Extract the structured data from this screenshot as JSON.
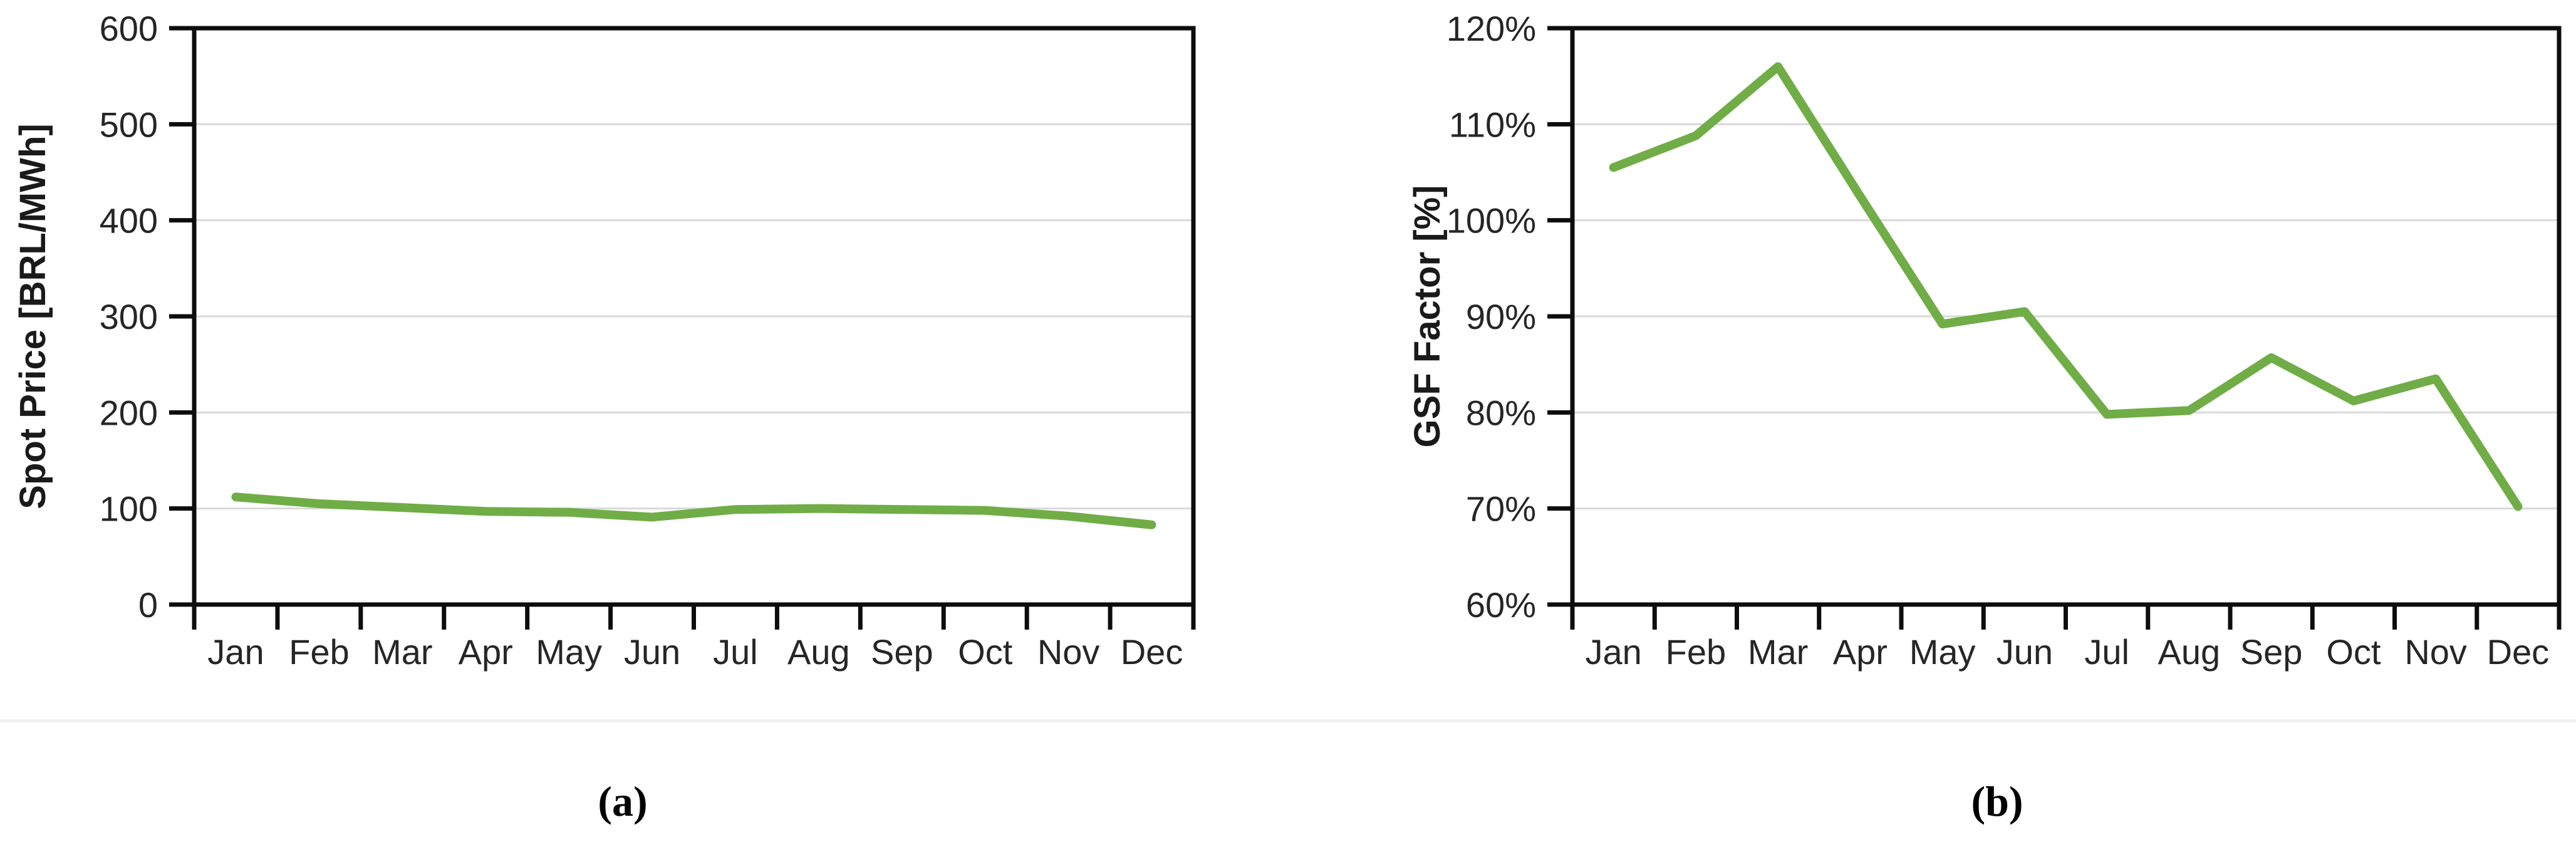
{
  "figure": {
    "panel_a_caption": "(a)",
    "panel_b_caption": "(b)"
  },
  "colors": {
    "line_green": "#70AD47",
    "gridline": "#D9D9D9",
    "axis": "#0d0d0d",
    "text": "#262626"
  },
  "chart_data": [
    {
      "type": "line",
      "title": "",
      "xlabel": "",
      "ylabel": "Spot Price [BRL/MWh]",
      "categories": [
        "Jan",
        "Feb",
        "Mar",
        "Apr",
        "May",
        "Jun",
        "Jul",
        "Aug",
        "Sep",
        "Oct",
        "Nov",
        "Dec"
      ],
      "values": [
        112,
        105,
        101,
        97,
        96,
        91,
        99,
        100,
        99,
        98,
        92,
        83
      ],
      "ylim": [
        0,
        600
      ],
      "ytick_values": [
        0,
        100,
        200,
        300,
        400,
        500,
        600
      ],
      "ytick_labels": [
        "0",
        "100",
        "200",
        "300",
        "400",
        "500",
        "600"
      ],
      "grid": "horizontal",
      "legend": "none",
      "line_color": "#70AD47",
      "caption": "(a)"
    },
    {
      "type": "line",
      "title": "",
      "xlabel": "",
      "ylabel": "GSF Factor [%]",
      "categories": [
        "Jan",
        "Feb",
        "Mar",
        "Apr",
        "May",
        "Jun",
        "Jul",
        "Aug",
        "Sep",
        "Oct",
        "Nov",
        "Dec"
      ],
      "values": [
        105.5,
        108.8,
        116.0,
        102.5,
        89.2,
        90.5,
        79.8,
        80.2,
        85.7,
        81.2,
        83.5,
        70.2
      ],
      "ylim": [
        60,
        120
      ],
      "ytick_values": [
        60,
        70,
        80,
        90,
        100,
        110,
        120
      ],
      "ytick_labels": [
        "60%",
        "70%",
        "80%",
        "90%",
        "100%",
        "110%",
        "120%"
      ],
      "grid": "horizontal",
      "legend": "none",
      "line_color": "#70AD47",
      "caption": "(b)"
    }
  ]
}
